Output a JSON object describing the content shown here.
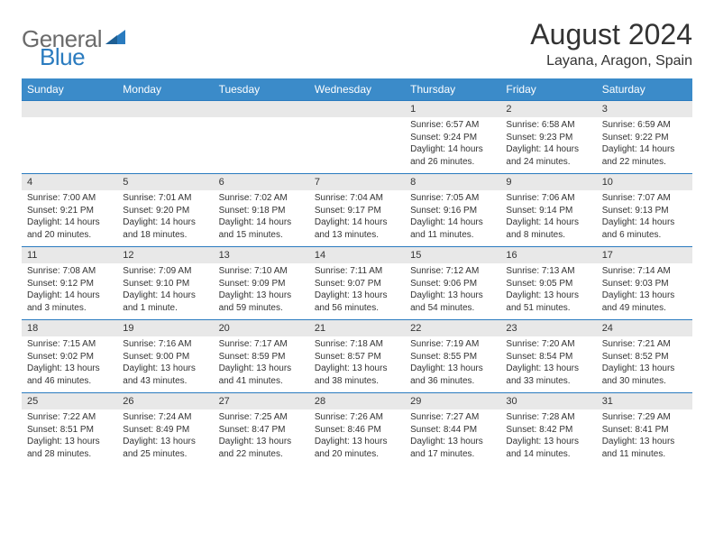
{
  "brand": {
    "part1": "General",
    "part2": "Blue"
  },
  "title": "August 2024",
  "location": "Layana, Aragon, Spain",
  "colors": {
    "header_bg": "#3b8bc9",
    "header_text": "#ffffff",
    "daynum_bg": "#e8e8e8",
    "border": "#2a7bbf",
    "text": "#333333",
    "logo_gray": "#6b6b6b",
    "logo_blue": "#2a7bbf"
  },
  "dow": [
    "Sunday",
    "Monday",
    "Tuesday",
    "Wednesday",
    "Thursday",
    "Friday",
    "Saturday"
  ],
  "weeks": [
    [
      null,
      null,
      null,
      null,
      {
        "d": "1",
        "rise": "6:57 AM",
        "set": "9:24 PM",
        "dl": "14 hours and 26 minutes."
      },
      {
        "d": "2",
        "rise": "6:58 AM",
        "set": "9:23 PM",
        "dl": "14 hours and 24 minutes."
      },
      {
        "d": "3",
        "rise": "6:59 AM",
        "set": "9:22 PM",
        "dl": "14 hours and 22 minutes."
      }
    ],
    [
      {
        "d": "4",
        "rise": "7:00 AM",
        "set": "9:21 PM",
        "dl": "14 hours and 20 minutes."
      },
      {
        "d": "5",
        "rise": "7:01 AM",
        "set": "9:20 PM",
        "dl": "14 hours and 18 minutes."
      },
      {
        "d": "6",
        "rise": "7:02 AM",
        "set": "9:18 PM",
        "dl": "14 hours and 15 minutes."
      },
      {
        "d": "7",
        "rise": "7:04 AM",
        "set": "9:17 PM",
        "dl": "14 hours and 13 minutes."
      },
      {
        "d": "8",
        "rise": "7:05 AM",
        "set": "9:16 PM",
        "dl": "14 hours and 11 minutes."
      },
      {
        "d": "9",
        "rise": "7:06 AM",
        "set": "9:14 PM",
        "dl": "14 hours and 8 minutes."
      },
      {
        "d": "10",
        "rise": "7:07 AM",
        "set": "9:13 PM",
        "dl": "14 hours and 6 minutes."
      }
    ],
    [
      {
        "d": "11",
        "rise": "7:08 AM",
        "set": "9:12 PM",
        "dl": "14 hours and 3 minutes."
      },
      {
        "d": "12",
        "rise": "7:09 AM",
        "set": "9:10 PM",
        "dl": "14 hours and 1 minute."
      },
      {
        "d": "13",
        "rise": "7:10 AM",
        "set": "9:09 PM",
        "dl": "13 hours and 59 minutes."
      },
      {
        "d": "14",
        "rise": "7:11 AM",
        "set": "9:07 PM",
        "dl": "13 hours and 56 minutes."
      },
      {
        "d": "15",
        "rise": "7:12 AM",
        "set": "9:06 PM",
        "dl": "13 hours and 54 minutes."
      },
      {
        "d": "16",
        "rise": "7:13 AM",
        "set": "9:05 PM",
        "dl": "13 hours and 51 minutes."
      },
      {
        "d": "17",
        "rise": "7:14 AM",
        "set": "9:03 PM",
        "dl": "13 hours and 49 minutes."
      }
    ],
    [
      {
        "d": "18",
        "rise": "7:15 AM",
        "set": "9:02 PM",
        "dl": "13 hours and 46 minutes."
      },
      {
        "d": "19",
        "rise": "7:16 AM",
        "set": "9:00 PM",
        "dl": "13 hours and 43 minutes."
      },
      {
        "d": "20",
        "rise": "7:17 AM",
        "set": "8:59 PM",
        "dl": "13 hours and 41 minutes."
      },
      {
        "d": "21",
        "rise": "7:18 AM",
        "set": "8:57 PM",
        "dl": "13 hours and 38 minutes."
      },
      {
        "d": "22",
        "rise": "7:19 AM",
        "set": "8:55 PM",
        "dl": "13 hours and 36 minutes."
      },
      {
        "d": "23",
        "rise": "7:20 AM",
        "set": "8:54 PM",
        "dl": "13 hours and 33 minutes."
      },
      {
        "d": "24",
        "rise": "7:21 AM",
        "set": "8:52 PM",
        "dl": "13 hours and 30 minutes."
      }
    ],
    [
      {
        "d": "25",
        "rise": "7:22 AM",
        "set": "8:51 PM",
        "dl": "13 hours and 28 minutes."
      },
      {
        "d": "26",
        "rise": "7:24 AM",
        "set": "8:49 PM",
        "dl": "13 hours and 25 minutes."
      },
      {
        "d": "27",
        "rise": "7:25 AM",
        "set": "8:47 PM",
        "dl": "13 hours and 22 minutes."
      },
      {
        "d": "28",
        "rise": "7:26 AM",
        "set": "8:46 PM",
        "dl": "13 hours and 20 minutes."
      },
      {
        "d": "29",
        "rise": "7:27 AM",
        "set": "8:44 PM",
        "dl": "13 hours and 17 minutes."
      },
      {
        "d": "30",
        "rise": "7:28 AM",
        "set": "8:42 PM",
        "dl": "13 hours and 14 minutes."
      },
      {
        "d": "31",
        "rise": "7:29 AM",
        "set": "8:41 PM",
        "dl": "13 hours and 11 minutes."
      }
    ]
  ],
  "labels": {
    "sunrise": "Sunrise:",
    "sunset": "Sunset:",
    "daylight": "Daylight:"
  }
}
